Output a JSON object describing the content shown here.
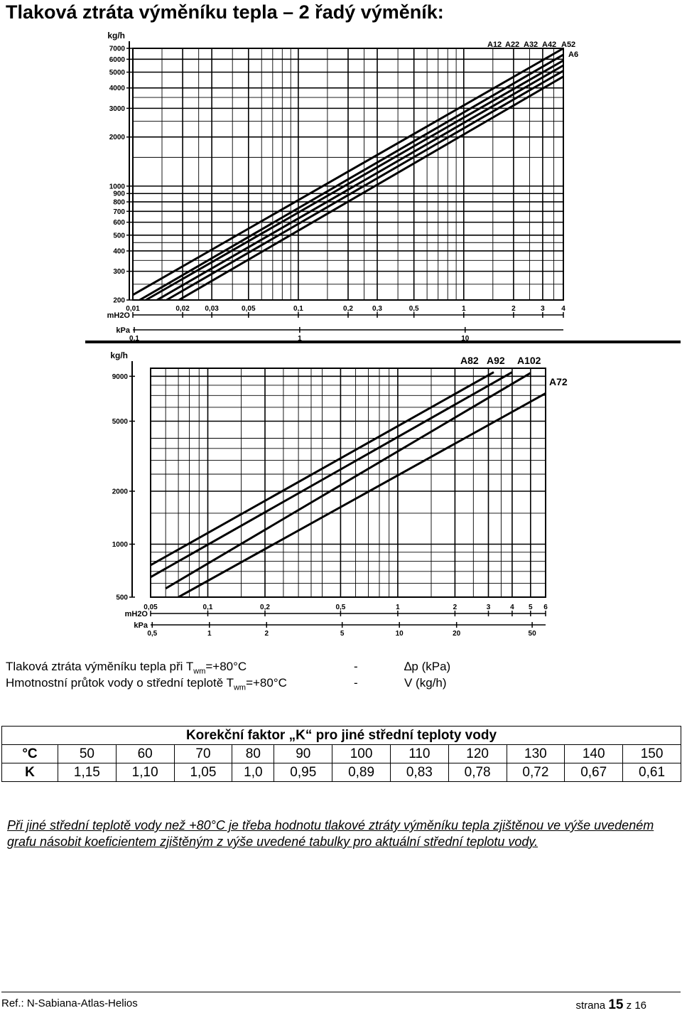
{
  "page_title": "Tlaková ztráta výměníku tepla – 2 řadý výměník:",
  "chart_data": [
    {
      "type": "line",
      "y_axis_unit": "kg/h",
      "y_log": true,
      "ylim": [
        200,
        7000
      ],
      "y_ticks": [
        200,
        300,
        400,
        500,
        600,
        700,
        800,
        900,
        1000,
        2000,
        3000,
        4000,
        5000,
        6000,
        7000
      ],
      "x_log": true,
      "xlim_mH2O": [
        0.01,
        4
      ],
      "x_axis_primary_label": "mH2O",
      "x_ticks_primary": [
        0.01,
        0.02,
        0.03,
        0.05,
        0.1,
        0.2,
        0.3,
        0.5,
        1,
        2,
        3,
        4
      ],
      "x_axis_secondary_label": "kPa",
      "x_ticks_secondary": [
        0.1,
        1,
        10
      ],
      "series": [
        {
          "name": "A12",
          "points": [
            [
              0.01,
              215
            ],
            [
              4,
              7000
            ]
          ]
        },
        {
          "name": "A22",
          "points": [
            [
              0.011,
              200
            ],
            [
              4,
              6400
            ]
          ]
        },
        {
          "name": "A32",
          "points": [
            [
              0.012,
              200
            ],
            [
              4,
              5900
            ]
          ]
        },
        {
          "name": "A42",
          "points": [
            [
              0.014,
              200
            ],
            [
              4,
              5500
            ]
          ]
        },
        {
          "name": "A52",
          "points": [
            [
              0.016,
              200
            ],
            [
              4,
              5100
            ]
          ]
        },
        {
          "name": "A6",
          "points": [
            [
              0.019,
              200
            ],
            [
              4,
              4700
            ]
          ]
        }
      ]
    },
    {
      "type": "line",
      "y_axis_unit": "kg/h",
      "y_log": true,
      "ylim": [
        500,
        10000
      ],
      "y_ticks": [
        500,
        1000,
        2000,
        5000,
        9000
      ],
      "x_log": true,
      "xlim_mH2O": [
        0.05,
        6
      ],
      "x_axis_primary_label": "mH2O",
      "x_ticks_primary": [
        0.05,
        0.1,
        0.2,
        0.5,
        1,
        2,
        3,
        4,
        5,
        6
      ],
      "x_axis_secondary_label": "kPa",
      "x_ticks_secondary": [
        0.5,
        1,
        2,
        5,
        10,
        20,
        50
      ],
      "series": [
        {
          "name": "A82",
          "points": [
            [
              0.05,
              760
            ],
            [
              3.2,
              9500
            ]
          ]
        },
        {
          "name": "A92",
          "points": [
            [
              0.05,
              650
            ],
            [
              4,
              9500
            ]
          ]
        },
        {
          "name": "A102",
          "points": [
            [
              0.06,
              560
            ],
            [
              5,
              9400
            ]
          ]
        },
        {
          "name": "A72",
          "points": [
            [
              0.07,
              500
            ],
            [
              6,
              7200
            ]
          ]
        }
      ]
    }
  ],
  "legend": {
    "line1_a": "Tlaková ztráta výměníku tepla při T",
    "line1_sub": "wm",
    "line1_b": "=+80°C",
    "line1_dash": "-",
    "line1_sym": "∆p (kPa)",
    "line2_a": "Hmotnostní průtok vody o střední teplotě T",
    "line2_sub": "wm",
    "line2_b": "=+80°C",
    "line2_dash": "-",
    "line2_sym": "V (kg/h)"
  },
  "correction_table": {
    "caption": "Korekční faktor „K“ pro jiné střední teploty vody",
    "row1_label": "°C",
    "row1_values": [
      "50",
      "60",
      "70",
      "80",
      "90",
      "100",
      "110",
      "120",
      "130",
      "140",
      "150"
    ],
    "row2_label": "K",
    "row2_values": [
      "1,15",
      "1,10",
      "1,05",
      "1,0",
      "0,95",
      "0,89",
      "0,83",
      "0,78",
      "0,72",
      "0,67",
      "0,61"
    ]
  },
  "note": "Při jiné střední teplotě vody než +80°C je třeba hodnotu tlakové ztráty výměníku tepla zjištěnou ve výše uvedeném grafu násobit koeficientem zjištěným z výše uvedené tabulky pro aktuální střední teplotu vody.",
  "footer": {
    "ref": "Ref.: N-Sabiana-Atlas-Helios",
    "page_prefix": "strana",
    "page_num": "15",
    "page_mid": "z",
    "page_total": "16"
  }
}
